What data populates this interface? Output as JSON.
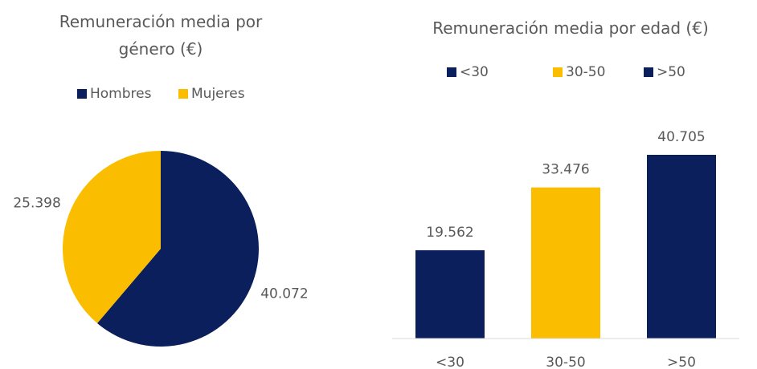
{
  "chart_data": [
    {
      "type": "pie",
      "title": "Remuneración media por género (€)",
      "categories": [
        "Hombres",
        "Mujeres"
      ],
      "values": [
        40072,
        25398
      ],
      "value_labels": [
        "40.072",
        "25.398"
      ],
      "colors": [
        "#0b1f5c",
        "#fbbd00"
      ],
      "legend": "top"
    },
    {
      "type": "bar",
      "title": "Remuneración media por edad (€)",
      "categories": [
        "<30",
        "30-50",
        ">50"
      ],
      "values": [
        19562,
        33476,
        40705
      ],
      "value_labels": [
        "19.562",
        "33.476",
        "40.705"
      ],
      "colors": [
        "#0b1f5c",
        "#fbbd00",
        "#0b1f5c"
      ],
      "legend": "top"
    }
  ]
}
